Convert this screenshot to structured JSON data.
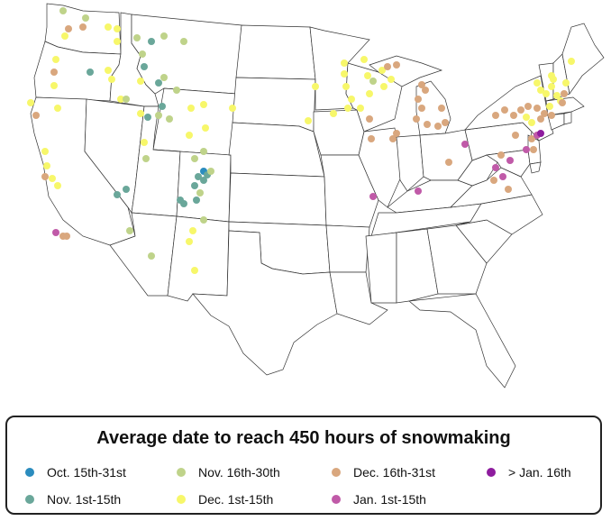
{
  "legend": {
    "title": "Average date to reach 450 hours of snowmaking",
    "categories": [
      {
        "id": "oct15_31",
        "label": "Oct. 15th-31st",
        "color": "#2b8cbe"
      },
      {
        "id": "nov1_15",
        "label": "Nov. 1st-15th",
        "color": "#6aa79a"
      },
      {
        "id": "nov16_30",
        "label": "Nov. 16th-30th",
        "color": "#bfd38a"
      },
      {
        "id": "dec1_15",
        "label": "Dec. 1st-15th",
        "color": "#f7f76a"
      },
      {
        "id": "dec16_31",
        "label": "Dec. 16th-31st",
        "color": "#d9a77e"
      },
      {
        "id": "jan1_15",
        "label": "Jan. 1st-15th",
        "color": "#c05aa8"
      },
      {
        "id": "jan16_plus",
        "label": "> Jan. 16th",
        "color": "#8e1c9e"
      }
    ]
  }
}
